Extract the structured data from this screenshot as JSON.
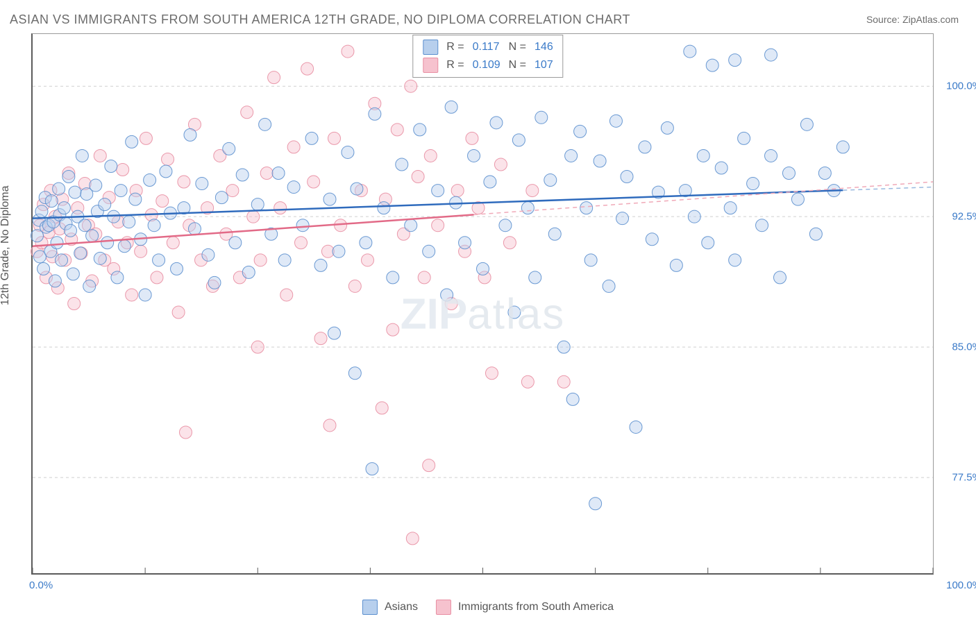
{
  "title": "ASIAN VS IMMIGRANTS FROM SOUTH AMERICA 12TH GRADE, NO DIPLOMA CORRELATION CHART",
  "source_label": "Source: ZipAtlas.com",
  "ylabel": "12th Grade, No Diploma",
  "watermark_strong": "ZIP",
  "watermark_light": "atlas",
  "chart": {
    "type": "scatter",
    "background_color": "#ffffff",
    "grid_color": "#cfcfcf",
    "grid_dash": "4 4",
    "border_color": "#5b5b5b",
    "xlim": [
      0,
      100
    ],
    "ylim": [
      72,
      103
    ],
    "xticks": [
      {
        "value": 0,
        "label": "0.0%"
      },
      {
        "value": 100,
        "label": "100.0%"
      }
    ],
    "xticks_minor": [
      12.5,
      25,
      37.5,
      50,
      62.5,
      75,
      87.5
    ],
    "yticks": [
      {
        "value": 77.5,
        "label": "77.5%"
      },
      {
        "value": 85.0,
        "label": "85.0%"
      },
      {
        "value": 92.5,
        "label": "92.5%"
      },
      {
        "value": 100.0,
        "label": "100.0%"
      }
    ],
    "marker_radius": 9,
    "marker_fill_opacity": 0.45,
    "marker_stroke_opacity": 0.9,
    "marker_stroke_width": 1,
    "trend_line_width": 2.5,
    "trend_dash_width": 1.5,
    "trend_dash": "6 5",
    "label_fontsize": 15,
    "title_fontsize": 18,
    "series": [
      {
        "key": "asians",
        "label": "Asians",
        "fill_color": "#b7cfed",
        "stroke_color": "#5b8fce",
        "line_color": "#2f6bbd",
        "dash_color": "#9ab9df",
        "R": "0.117",
        "N": "146",
        "trend": {
          "x0": 0,
          "y0": 92.4,
          "x1": 100,
          "y1": 94.2,
          "solid_until": 90
        },
        "points": [
          [
            0.5,
            91.4
          ],
          [
            0.7,
            92.3
          ],
          [
            0.8,
            90.2
          ],
          [
            1.0,
            92.8
          ],
          [
            1.2,
            89.5
          ],
          [
            1.4,
            93.6
          ],
          [
            1.5,
            91.9
          ],
          [
            1.8,
            92.0
          ],
          [
            2.0,
            90.5
          ],
          [
            2.1,
            93.4
          ],
          [
            2.3,
            92.2
          ],
          [
            2.5,
            88.8
          ],
          [
            2.7,
            91.0
          ],
          [
            2.9,
            94.1
          ],
          [
            3.0,
            92.6
          ],
          [
            3.2,
            90.0
          ],
          [
            3.5,
            93.0
          ],
          [
            3.7,
            92.1
          ],
          [
            4.0,
            94.8
          ],
          [
            4.2,
            91.7
          ],
          [
            4.5,
            89.2
          ],
          [
            4.7,
            93.9
          ],
          [
            5.0,
            92.5
          ],
          [
            5.3,
            90.4
          ],
          [
            5.5,
            96.0
          ],
          [
            5.8,
            92.0
          ],
          [
            6.0,
            93.8
          ],
          [
            6.3,
            88.5
          ],
          [
            6.6,
            91.4
          ],
          [
            7.0,
            94.3
          ],
          [
            7.2,
            92.8
          ],
          [
            7.5,
            90.1
          ],
          [
            8.0,
            93.2
          ],
          [
            8.3,
            91.0
          ],
          [
            8.7,
            95.4
          ],
          [
            9.0,
            92.5
          ],
          [
            9.4,
            89.0
          ],
          [
            9.8,
            94.0
          ],
          [
            10.2,
            90.8
          ],
          [
            10.7,
            92.2
          ],
          [
            11.0,
            96.8
          ],
          [
            11.4,
            93.5
          ],
          [
            12.0,
            91.2
          ],
          [
            12.5,
            88.0
          ],
          [
            13.0,
            94.6
          ],
          [
            13.5,
            92.0
          ],
          [
            14.0,
            90.0
          ],
          [
            14.8,
            95.1
          ],
          [
            15.3,
            92.7
          ],
          [
            16.0,
            89.5
          ],
          [
            16.8,
            93.0
          ],
          [
            17.5,
            97.2
          ],
          [
            18.0,
            91.8
          ],
          [
            18.8,
            94.4
          ],
          [
            19.5,
            90.3
          ],
          [
            20.2,
            88.7
          ],
          [
            21.0,
            93.6
          ],
          [
            21.8,
            96.4
          ],
          [
            22.5,
            91.0
          ],
          [
            23.3,
            94.9
          ],
          [
            24.0,
            89.3
          ],
          [
            25.0,
            93.2
          ],
          [
            25.8,
            97.8
          ],
          [
            26.5,
            91.5
          ],
          [
            27.3,
            95.0
          ],
          [
            28.0,
            90.0
          ],
          [
            29.0,
            94.2
          ],
          [
            30.0,
            92.0
          ],
          [
            31.0,
            97.0
          ],
          [
            32.0,
            89.7
          ],
          [
            33.0,
            93.5
          ],
          [
            33.5,
            85.8
          ],
          [
            34.0,
            90.5
          ],
          [
            35.0,
            96.2
          ],
          [
            35.8,
            83.5
          ],
          [
            36.0,
            94.1
          ],
          [
            37.0,
            91.0
          ],
          [
            37.7,
            78.0
          ],
          [
            38.0,
            98.4
          ],
          [
            39.0,
            93.0
          ],
          [
            40.0,
            89.0
          ],
          [
            41.0,
            95.5
          ],
          [
            42.0,
            92.0
          ],
          [
            43.0,
            97.5
          ],
          [
            44.0,
            90.5
          ],
          [
            45.0,
            94.0
          ],
          [
            46.0,
            88.0
          ],
          [
            46.5,
            98.8
          ],
          [
            47.0,
            93.3
          ],
          [
            48.0,
            91.0
          ],
          [
            49.0,
            96.0
          ],
          [
            50.0,
            89.5
          ],
          [
            50.8,
            94.5
          ],
          [
            51.5,
            97.9
          ],
          [
            52.5,
            92.0
          ],
          [
            53.5,
            87.0
          ],
          [
            54.0,
            96.9
          ],
          [
            55.0,
            93.0
          ],
          [
            55.8,
            89.0
          ],
          [
            56.5,
            98.2
          ],
          [
            57.5,
            94.6
          ],
          [
            58.0,
            91.5
          ],
          [
            59.0,
            85.0
          ],
          [
            59.8,
            96.0
          ],
          [
            60.0,
            82.0
          ],
          [
            60.8,
            97.4
          ],
          [
            61.5,
            93.0
          ],
          [
            62.0,
            90.0
          ],
          [
            62.5,
            76.0
          ],
          [
            63.0,
            95.7
          ],
          [
            64.0,
            88.5
          ],
          [
            64.8,
            98.0
          ],
          [
            65.5,
            92.4
          ],
          [
            66.0,
            94.8
          ],
          [
            67.0,
            80.4
          ],
          [
            68.0,
            96.5
          ],
          [
            68.8,
            91.2
          ],
          [
            69.5,
            93.9
          ],
          [
            70.5,
            97.6
          ],
          [
            71.5,
            89.7
          ],
          [
            72.5,
            94.0
          ],
          [
            73.0,
            102.0
          ],
          [
            73.5,
            92.5
          ],
          [
            74.5,
            96.0
          ],
          [
            75.0,
            91.0
          ],
          [
            75.5,
            101.2
          ],
          [
            76.5,
            95.3
          ],
          [
            77.5,
            93.0
          ],
          [
            78.0,
            101.5
          ],
          [
            78.0,
            90.0
          ],
          [
            79.0,
            97.0
          ],
          [
            80.0,
            94.4
          ],
          [
            81.0,
            92.0
          ],
          [
            82.0,
            101.8
          ],
          [
            82.0,
            96.0
          ],
          [
            83.0,
            89.0
          ],
          [
            84.0,
            95.0
          ],
          [
            85.0,
            93.5
          ],
          [
            86.0,
            97.8
          ],
          [
            87.0,
            91.5
          ],
          [
            88.0,
            95.0
          ],
          [
            89.0,
            94.0
          ],
          [
            90.0,
            96.5
          ]
        ]
      },
      {
        "key": "immigrants",
        "label": "Immigrants from South America",
        "fill_color": "#f6c2ce",
        "stroke_color": "#e88ea2",
        "line_color": "#e26a87",
        "dash_color": "#f0a9b8",
        "R": "0.109",
        "N": "107",
        "trend": {
          "x0": 0,
          "y0": 90.8,
          "x1": 100,
          "y1": 94.5,
          "solid_until": 49
        },
        "points": [
          [
            0.5,
            90.5
          ],
          [
            0.8,
            92.0
          ],
          [
            1.0,
            91.0
          ],
          [
            1.2,
            93.2
          ],
          [
            1.5,
            89.0
          ],
          [
            1.8,
            91.6
          ],
          [
            2.0,
            94.0
          ],
          [
            2.2,
            90.2
          ],
          [
            2.5,
            92.5
          ],
          [
            2.8,
            88.4
          ],
          [
            3.0,
            91.8
          ],
          [
            3.3,
            93.5
          ],
          [
            3.6,
            90.0
          ],
          [
            4.0,
            95.0
          ],
          [
            4.3,
            91.2
          ],
          [
            4.6,
            87.5
          ],
          [
            5.0,
            93.0
          ],
          [
            5.4,
            90.4
          ],
          [
            5.8,
            94.4
          ],
          [
            6.2,
            92.0
          ],
          [
            6.6,
            88.8
          ],
          [
            7.0,
            91.5
          ],
          [
            7.5,
            96.0
          ],
          [
            8.0,
            90.0
          ],
          [
            8.5,
            93.6
          ],
          [
            9.0,
            89.5
          ],
          [
            9.5,
            92.2
          ],
          [
            10.0,
            95.2
          ],
          [
            10.5,
            91.0
          ],
          [
            11.0,
            88.0
          ],
          [
            11.5,
            94.0
          ],
          [
            12.0,
            90.5
          ],
          [
            12.6,
            97.0
          ],
          [
            13.2,
            92.6
          ],
          [
            13.8,
            89.0
          ],
          [
            14.4,
            93.4
          ],
          [
            15.0,
            95.8
          ],
          [
            15.6,
            91.0
          ],
          [
            16.2,
            87.0
          ],
          [
            16.8,
            94.5
          ],
          [
            17.0,
            80.1
          ],
          [
            17.4,
            92.0
          ],
          [
            18.0,
            97.8
          ],
          [
            18.7,
            90.0
          ],
          [
            19.4,
            93.0
          ],
          [
            20.0,
            88.5
          ],
          [
            20.8,
            96.0
          ],
          [
            21.5,
            91.5
          ],
          [
            22.2,
            94.0
          ],
          [
            23.0,
            89.0
          ],
          [
            23.8,
            98.5
          ],
          [
            24.5,
            92.5
          ],
          [
            25.0,
            85.0
          ],
          [
            25.3,
            90.0
          ],
          [
            26.0,
            95.0
          ],
          [
            26.8,
            100.5
          ],
          [
            27.5,
            93.0
          ],
          [
            28.2,
            88.0
          ],
          [
            29.0,
            96.5
          ],
          [
            29.8,
            91.0
          ],
          [
            30.5,
            101.0
          ],
          [
            31.2,
            94.5
          ],
          [
            32.0,
            85.5
          ],
          [
            32.8,
            90.5
          ],
          [
            33.0,
            80.5
          ],
          [
            33.5,
            97.0
          ],
          [
            34.2,
            92.0
          ],
          [
            35.0,
            102.0
          ],
          [
            35.8,
            88.5
          ],
          [
            36.5,
            94.0
          ],
          [
            37.2,
            90.0
          ],
          [
            38.0,
            99.0
          ],
          [
            38.8,
            81.5
          ],
          [
            39.2,
            93.5
          ],
          [
            40.0,
            86.0
          ],
          [
            40.5,
            97.5
          ],
          [
            41.2,
            91.5
          ],
          [
            42.0,
            100.0
          ],
          [
            42.2,
            74.0
          ],
          [
            42.8,
            94.8
          ],
          [
            43.5,
            89.0
          ],
          [
            44.0,
            78.2
          ],
          [
            44.2,
            96.0
          ],
          [
            45.0,
            92.0
          ],
          [
            45.8,
            101.5
          ],
          [
            46.5,
            87.5
          ],
          [
            47.2,
            94.0
          ],
          [
            48.0,
            90.5
          ],
          [
            48.8,
            97.0
          ],
          [
            49.5,
            93.0
          ],
          [
            50.2,
            89.0
          ],
          [
            51.0,
            83.5
          ],
          [
            52.0,
            95.5
          ],
          [
            53.0,
            91.0
          ],
          [
            55.0,
            83.0
          ],
          [
            55.5,
            94.0
          ],
          [
            59.0,
            83.0
          ]
        ]
      }
    ]
  }
}
